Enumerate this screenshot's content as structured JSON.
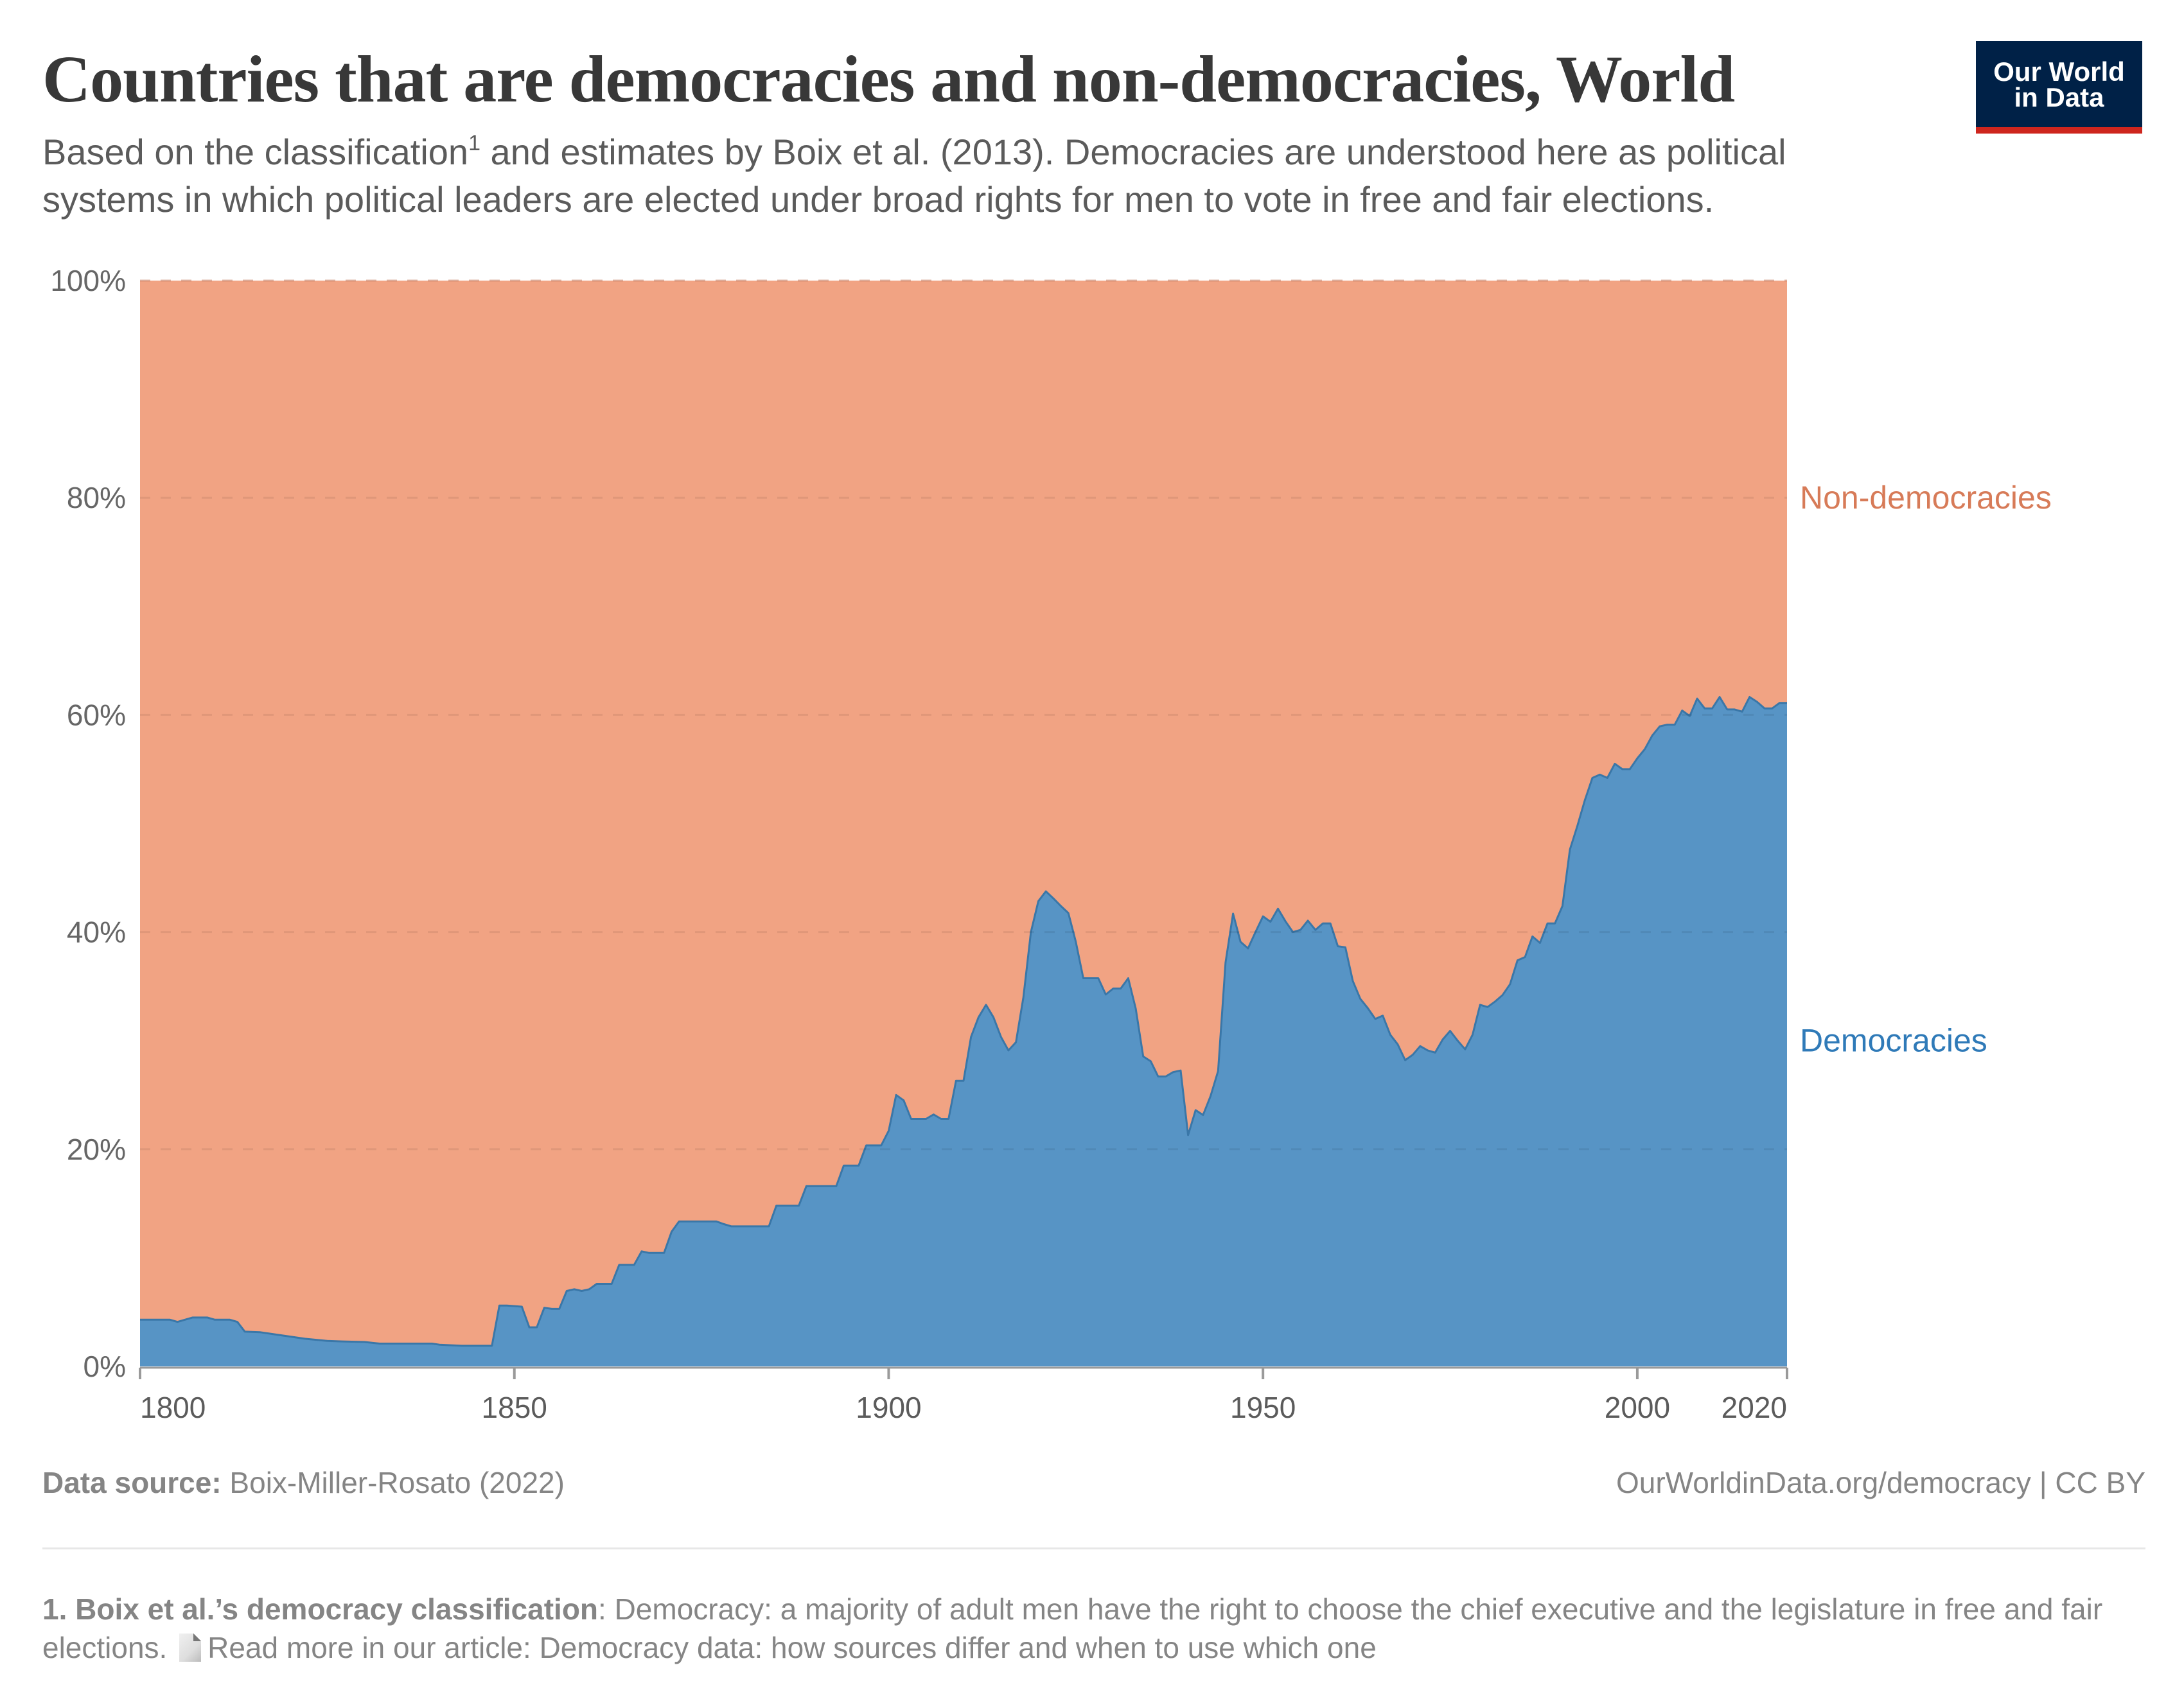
{
  "header": {
    "title": "Countries that are democracies and non-democracies, World",
    "subtitle_part1": "Based on the classification",
    "subtitle_footnote_ref": "1",
    "subtitle_part2": " and estimates by Boix et al. (2013). Democracies are understood here as political systems in which political leaders are elected under broad rights for men to vote in free and fair elections.",
    "logo_line1": "Our World",
    "logo_line2": "in Data"
  },
  "colors": {
    "democracies_fill": "#5794c5",
    "democracies_line": "#3a77a8",
    "democracies_label": "#2f7ab8",
    "nondemocracies_fill": "#f1a383",
    "nondemocracies_label": "#d77b58",
    "logo_bg": "#002147",
    "logo_bar": "#ce261e"
  },
  "chart_data": {
    "type": "area",
    "stacked": true,
    "title": "Countries that are democracies and non-democracies, World",
    "xlabel": "",
    "ylabel": "",
    "xlim": [
      1800,
      2020
    ],
    "ylim": [
      0,
      100
    ],
    "x_ticks": [
      {
        "value": 1800,
        "label": "1800"
      },
      {
        "value": 1850,
        "label": "1850"
      },
      {
        "value": 1900,
        "label": "1900"
      },
      {
        "value": 1950,
        "label": "1950"
      },
      {
        "value": 2000,
        "label": "2000"
      },
      {
        "value": 2020,
        "label": "2020"
      }
    ],
    "y_ticks": [
      {
        "value": 0,
        "label": "0%"
      },
      {
        "value": 20,
        "label": "20%"
      },
      {
        "value": 40,
        "label": "40%"
      },
      {
        "value": 60,
        "label": "60%"
      },
      {
        "value": 80,
        "label": "80%"
      },
      {
        "value": 100,
        "label": "100%"
      }
    ],
    "grid": "horizontal-dashed",
    "legend": "inline-right",
    "series": [
      {
        "name": "Democracies",
        "label_value": 30,
        "x": [
          1800,
          1804,
          1805,
          1806,
          1807,
          1809,
          1810,
          1812,
          1813,
          1814,
          1816,
          1818,
          1820,
          1822,
          1825,
          1827,
          1830,
          1832,
          1839,
          1840,
          1843,
          1847,
          1848,
          1849,
          1851,
          1852,
          1853,
          1854,
          1855,
          1856,
          1857,
          1858,
          1859,
          1860,
          1861,
          1863,
          1864,
          1866,
          1867,
          1868,
          1870,
          1871,
          1872,
          1877,
          1878,
          1879,
          1884,
          1885,
          1888,
          1889,
          1893,
          1894,
          1896,
          1897,
          1899,
          1900,
          1901,
          1902,
          1903,
          1905,
          1906,
          1907,
          1908,
          1909,
          1910,
          1911,
          1912,
          1913,
          1914,
          1915,
          1916,
          1917,
          1918,
          1919,
          1920,
          1921,
          1922,
          1923,
          1924,
          1925,
          1926,
          1928,
          1929,
          1930,
          1931,
          1932,
          1933,
          1934,
          1935,
          1936,
          1937,
          1938,
          1939,
          1940,
          1941,
          1942,
          1943,
          1944,
          1945,
          1946,
          1947,
          1948,
          1949,
          1950,
          1951,
          1952,
          1953,
          1954,
          1955,
          1956,
          1957,
          1958,
          1959,
          1960,
          1961,
          1962,
          1963,
          1964,
          1965,
          1966,
          1967,
          1968,
          1969,
          1970,
          1971,
          1972,
          1973,
          1974,
          1975,
          1976,
          1977,
          1978,
          1979,
          1980,
          1981,
          1982,
          1983,
          1984,
          1985,
          1986,
          1987,
          1988,
          1989,
          1990,
          1991,
          1992,
          1993,
          1994,
          1995,
          1996,
          1997,
          1998,
          1999,
          2000,
          2001,
          2002,
          2003,
          2004,
          2005,
          2006,
          2007,
          2008,
          2009,
          2010,
          2011,
          2012,
          2013,
          2014,
          2015,
          2016,
          2017,
          2018,
          2019,
          2020
        ],
        "values": [
          4.3,
          4.3,
          4.1,
          4.3,
          4.5,
          4.5,
          4.3,
          4.3,
          4.1,
          3.2,
          3.15,
          2.95,
          2.75,
          2.55,
          2.35,
          2.3,
          2.25,
          2.1,
          2.1,
          2.0,
          1.9,
          1.9,
          5.6,
          5.6,
          5.5,
          3.6,
          3.6,
          5.4,
          5.3,
          5.3,
          6.95,
          7.1,
          6.95,
          7.1,
          7.6,
          7.6,
          9.35,
          9.35,
          10.6,
          10.45,
          10.45,
          12.4,
          13.35,
          13.35,
          13.1,
          12.9,
          12.9,
          14.8,
          14.8,
          16.6,
          16.6,
          18.5,
          18.5,
          20.35,
          20.35,
          21.7,
          25.0,
          24.5,
          22.8,
          22.8,
          23.2,
          22.8,
          22.8,
          26.3,
          26.3,
          30.35,
          32.15,
          33.3,
          32.15,
          30.35,
          29.1,
          29.85,
          34.0,
          40.0,
          42.85,
          43.75,
          43.1,
          42.4,
          41.75,
          39.1,
          35.75,
          35.75,
          34.25,
          34.8,
          34.8,
          35.75,
          32.95,
          28.55,
          28.1,
          26.7,
          26.7,
          27.1,
          27.25,
          21.3,
          23.6,
          23.15,
          24.9,
          27.2,
          37.2,
          41.7,
          39.1,
          38.5,
          40.0,
          41.45,
          40.95,
          42.15,
          41.0,
          40.0,
          40.2,
          41.05,
          40.2,
          40.8,
          40.8,
          38.7,
          38.6,
          35.5,
          33.85,
          33.0,
          32.0,
          32.3,
          30.55,
          29.65,
          28.2,
          28.7,
          29.5,
          29.1,
          28.9,
          30.1,
          30.9,
          30.0,
          29.2,
          30.55,
          33.3,
          33.1,
          33.6,
          34.2,
          35.2,
          37.4,
          37.7,
          39.6,
          39.0,
          40.8,
          40.8,
          42.4,
          47.6,
          49.8,
          52.15,
          54.2,
          54.5,
          54.2,
          55.5,
          55.0,
          55.0,
          56.0,
          56.85,
          58.1,
          58.95,
          59.1,
          59.1,
          60.4,
          59.9,
          61.5,
          60.6,
          60.6,
          61.65,
          60.5,
          60.5,
          60.3,
          61.65,
          61.2,
          60.6,
          60.6,
          61.1,
          61.1
        ]
      },
      {
        "name": "Non-democracies",
        "label_value": 80,
        "values_note": "100 minus Democracies share"
      }
    ]
  },
  "footer": {
    "source_label": "Data source:",
    "source_value": " Boix-Miller-Rosato (2022)",
    "license": "OurWorldinData.org/democracy | CC BY",
    "footnote_label": "1. Boix et al.’s democracy classification",
    "footnote_text": ": Democracy: a majority of adult men have the right to choose the chief executive and the legislature in free and fair elections.",
    "footnote_icon": "document-icon",
    "footnote_link_text": "Read more in our article: Democracy data: how sources differ and when to use which one"
  }
}
